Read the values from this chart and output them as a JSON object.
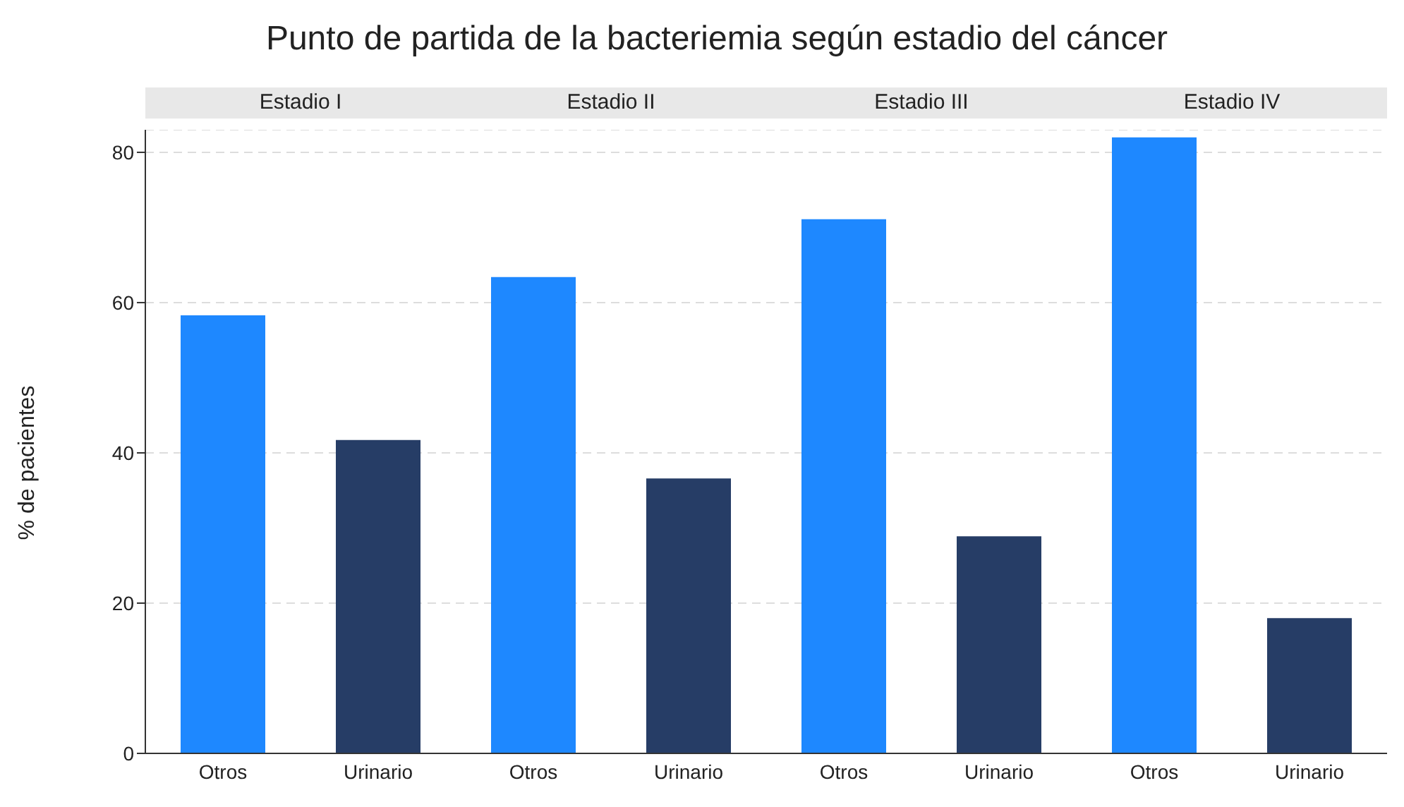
{
  "chart_data": [
    {
      "type": "bar",
      "title": "Punto de partida de la bacteriemia según estadio del cáncer",
      "subtitle": "Estadio I",
      "ylabel": "% de pacientes",
      "categories": [
        "Otros",
        "Urinario"
      ],
      "values": [
        58.3,
        41.7
      ],
      "colors": [
        "#1e88ff",
        "#263d66"
      ],
      "ylim": [
        0,
        83
      ],
      "yticks": [
        0,
        20,
        40,
        60,
        80
      ],
      "grid": "y"
    },
    {
      "type": "bar",
      "subtitle": "Estadio II",
      "categories": [
        "Otros",
        "Urinario"
      ],
      "values": [
        63.4,
        36.6
      ],
      "colors": [
        "#1e88ff",
        "#263d66"
      ],
      "ylim": [
        0,
        83
      ],
      "yticks": [
        0,
        20,
        40,
        60,
        80
      ],
      "grid": "y",
      "tick_labels": "x"
    },
    {
      "type": "bar",
      "subtitle": "Estadio III",
      "categories": [
        "Otros",
        "Urinario"
      ],
      "values": [
        71.1,
        28.9
      ],
      "colors": [
        "#1e88ff",
        "#263d66"
      ],
      "ylim": [
        0,
        83
      ],
      "yticks": [
        0,
        20,
        40,
        60,
        80
      ],
      "grid": "y",
      "tick_labels": "x"
    },
    {
      "type": "bar",
      "subtitle": "Estadio IV",
      "categories": [
        "Otros",
        "Urinario"
      ],
      "values": [
        82,
        18
      ],
      "colors": [
        "#1e88ff",
        "#263d66"
      ],
      "ylim": [
        0,
        83
      ],
      "yticks": [
        0,
        20,
        40,
        60,
        80
      ],
      "grid": "y",
      "tick_labels": "x"
    }
  ]
}
